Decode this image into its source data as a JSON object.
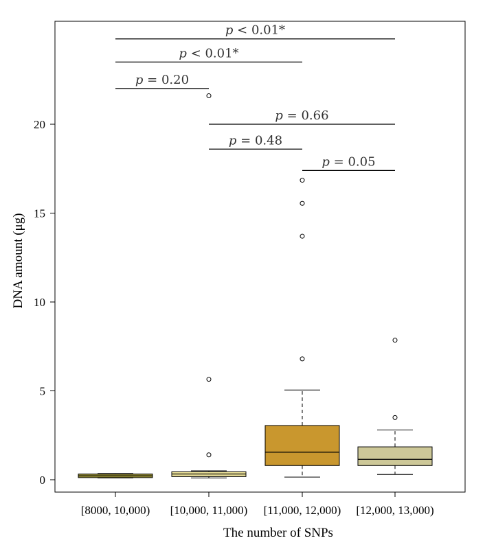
{
  "chart_data": {
    "type": "box",
    "title": "",
    "xlabel": "The number of SNPs",
    "ylabel": "DNA amount (μg)",
    "ylim": [
      -0.5,
      26
    ],
    "yticks": [
      0,
      5,
      10,
      15,
      20
    ],
    "grid": false,
    "categories": [
      "[8000, 10,000)",
      "[10,000, 11,000)",
      "[11,000, 12,000)",
      "[12,000, 13,000)"
    ],
    "boxes": [
      {
        "category": "[8000, 10,000)",
        "min": 0.1,
        "q1": 0.12,
        "median": 0.22,
        "q3": 0.32,
        "max": 0.35,
        "outliers": [],
        "color": "#9a9235"
      },
      {
        "category": "[10,000, 11,000)",
        "min": 0.1,
        "q1": 0.18,
        "median": 0.32,
        "q3": 0.45,
        "max": 0.5,
        "outliers": [
          1.4,
          5.65,
          21.6
        ],
        "color": "#eee39a"
      },
      {
        "category": "[11,000, 12,000)",
        "min": 0.15,
        "q1": 0.8,
        "median": 1.55,
        "q3": 3.05,
        "max": 5.05,
        "outliers": [
          6.8,
          13.7,
          15.55,
          16.85
        ],
        "color": "#c9972e"
      },
      {
        "category": "[12,000, 13,000)",
        "min": 0.3,
        "q1": 0.8,
        "median": 1.15,
        "q3": 1.85,
        "max": 2.8,
        "outliers": [
          3.5,
          7.85
        ],
        "color": "#cdc898"
      }
    ],
    "comparisons": [
      {
        "from": 0,
        "to": 3,
        "y": 24.8,
        "label": "< 0.01*"
      },
      {
        "from": 0,
        "to": 2,
        "y": 23.5,
        "label": "< 0.01*"
      },
      {
        "from": 0,
        "to": 1,
        "y": 22.0,
        "label": "= 0.20"
      },
      {
        "from": 1,
        "to": 3,
        "y": 20.0,
        "label": "= 0.66"
      },
      {
        "from": 1,
        "to": 2,
        "y": 18.6,
        "label": "= 0.48"
      },
      {
        "from": 2,
        "to": 3,
        "y": 17.4,
        "label": "= 0.05"
      }
    ],
    "p_symbol": "p"
  }
}
